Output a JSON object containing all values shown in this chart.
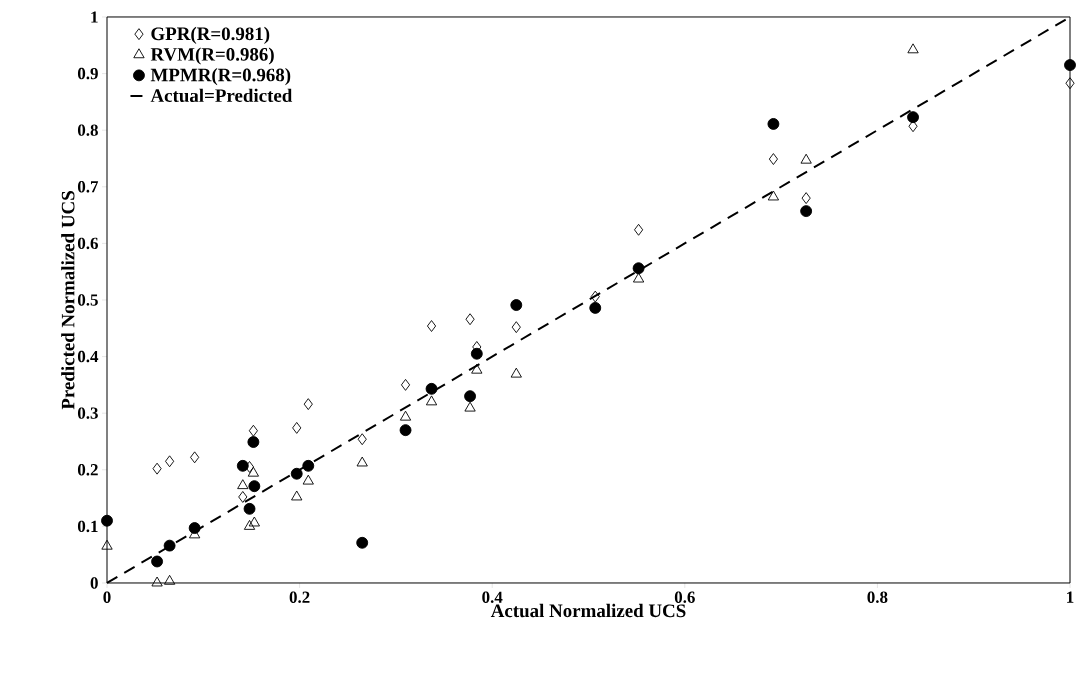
{
  "chart_data": {
    "type": "scatter",
    "xlabel": "Actual Normalized UCS",
    "ylabel": "Predicted Normalized UCS",
    "x": [
      0,
      0.052,
      0.065,
      0.091,
      0.141,
      0.148,
      0.152,
      0.153,
      0.197,
      0.209,
      0.265,
      0.31,
      0.337,
      0.377,
      0.384,
      0.425,
      0.507,
      0.552,
      0.692,
      0.726,
      0.837,
      1.0
    ],
    "series": [
      {
        "name": "GPR(R=0.981)",
        "color": "#000000",
        "marker": "diamond",
        "values": [
          null,
          0.202,
          0.215,
          0.222,
          0.152,
          0.205,
          0.269,
          null,
          0.274,
          0.316,
          0.254,
          0.35,
          0.454,
          0.466,
          0.417,
          0.452,
          0.506,
          0.624,
          0.749,
          0.68,
          0.807,
          0.883
        ]
      },
      {
        "name": "RVM(R=0.986)",
        "color": "#000000",
        "marker": "triangle",
        "values": [
          0.065,
          0.0,
          0.003,
          0.085,
          0.172,
          0.1,
          0.194,
          0.106,
          0.152,
          0.18,
          0.212,
          0.293,
          0.32,
          0.309,
          0.376,
          0.369,
          null,
          0.537,
          0.682,
          0.747,
          0.942,
          null
        ]
      },
      {
        "name": "MPMR(R=0.968)",
        "color": "#000000",
        "marker": "circle",
        "values": [
          0.11,
          0.038,
          0.066,
          0.097,
          0.207,
          0.131,
          0.249,
          0.171,
          0.193,
          0.207,
          0.071,
          0.27,
          0.343,
          0.33,
          0.405,
          0.491,
          0.486,
          0.556,
          0.811,
          0.657,
          0.823,
          0.915
        ]
      },
      {
        "name": "Actual=Predicted",
        "type": "line",
        "color": "#000000",
        "line_style": "dashed",
        "marker": "none",
        "x": [
          0,
          1
        ],
        "values": [
          0,
          1
        ]
      }
    ],
    "xlim": [
      0,
      1
    ],
    "ylim": [
      0,
      1
    ],
    "xticks": [
      0,
      0.2,
      0.4,
      0.6,
      0.8,
      1
    ],
    "yticks": [
      0,
      0.1,
      0.2,
      0.3,
      0.4,
      0.5,
      0.6,
      0.7,
      0.8,
      0.9,
      1
    ],
    "grid": false,
    "legend": "top left"
  }
}
